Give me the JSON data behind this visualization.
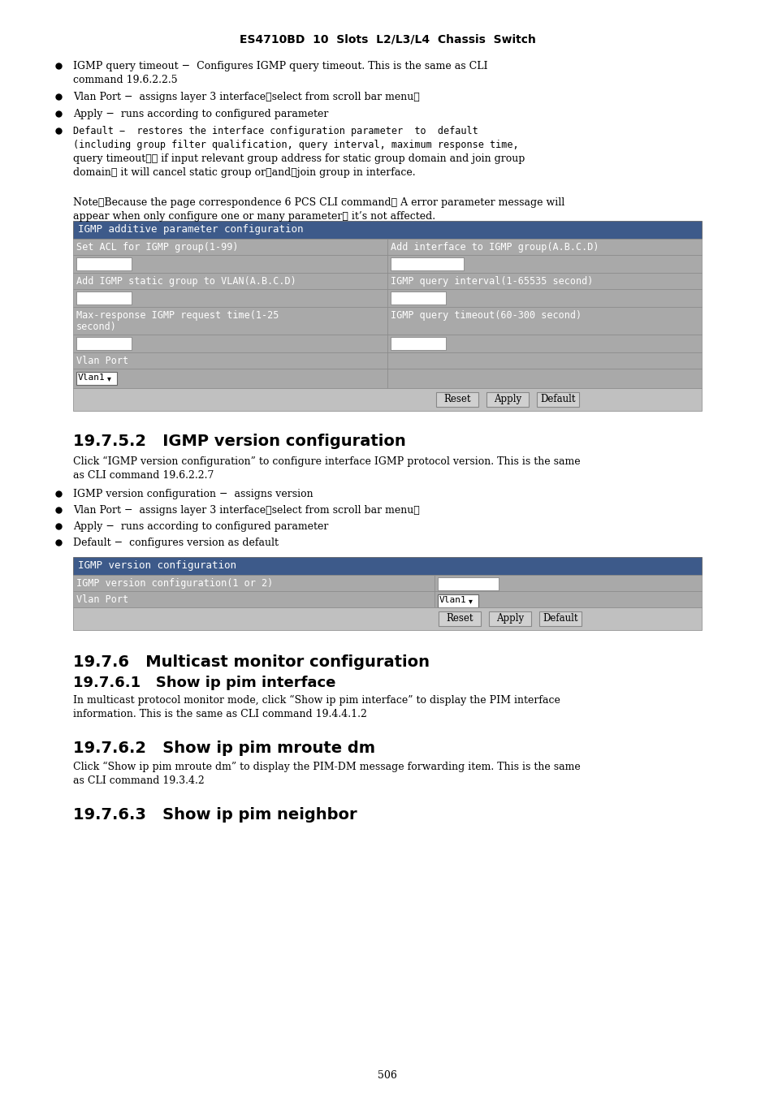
{
  "page_title": "ES4710BD  10  Slots  L2/L3/L4  Chassis  Switch",
  "background_color": "#ffffff",
  "text_color": "#000000",
  "table1_header": "IGMP additive parameter configuration",
  "table1_header_bg": "#3d5a8a",
  "table1_header_text": "#ffffff",
  "table2_header": "IGMP version configuration",
  "table2_header_bg": "#3d5a8a",
  "table2_header_text": "#ffffff",
  "section_252_title": "19.7.5.2   IGMP version configuration",
  "section_76_title": "19.7.6   Multicast monitor configuration",
  "section_761_title": "19.7.6.1   Show ip pim interface",
  "section_762_title": "19.7.6.2   Show ip pim mroute dm",
  "section_763_title": "19.7.6.3   Show ip pim neighbor",
  "page_number": "506",
  "table_bg_gray": "#a9a9a9",
  "input_bg": "#ffffff",
  "btn_bg": "#d0d0d0",
  "btn_row_bg": "#c0c0c0"
}
